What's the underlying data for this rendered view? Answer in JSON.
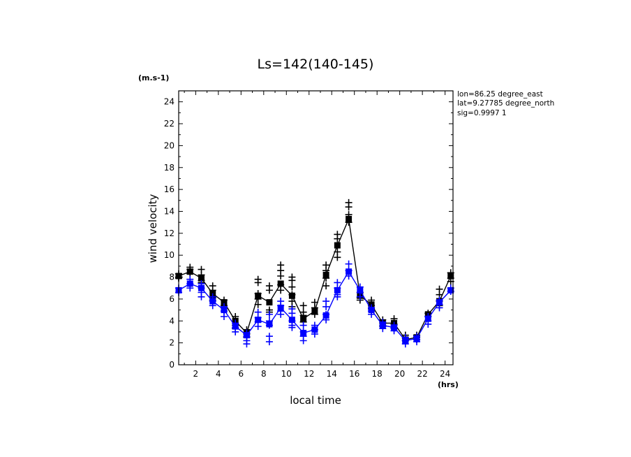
{
  "chart_data": {
    "type": "line",
    "title": "Ls=142(140-145)",
    "ylabel": "wind velocity",
    "yunit": "(m.s-1)",
    "xlabel": "local time",
    "xunit": "(hrs)",
    "xlim": [
      0.5,
      24.7
    ],
    "ylim": [
      0,
      25
    ],
    "xticks": [
      2,
      4,
      6,
      8,
      10,
      12,
      14,
      16,
      18,
      20,
      22,
      24
    ],
    "yticks": [
      0,
      2,
      4,
      6,
      8,
      10,
      12,
      14,
      16,
      18,
      20,
      22,
      24
    ],
    "grid": false,
    "x": [
      0.5,
      1.5,
      2.5,
      3.5,
      4.5,
      5.5,
      6.5,
      7.5,
      8.5,
      9.5,
      10.5,
      11.5,
      12.5,
      13.5,
      14.5,
      15.5,
      16.5,
      17.5,
      18.5,
      19.5,
      20.5,
      21.5,
      22.5,
      23.5,
      24.5
    ],
    "series": [
      {
        "color": "#000000",
        "values": [
          8.1,
          8.5,
          7.9,
          6.5,
          5.7,
          4.0,
          2.9,
          6.3,
          5.7,
          7.4,
          6.3,
          4.2,
          4.9,
          8.2,
          10.9,
          13.3,
          6.3,
          5.5,
          3.8,
          3.8,
          2.3,
          2.5,
          4.6,
          5.8,
          8.1
        ],
        "scatter": [
          [
            8.3,
            7.9,
            8.0
          ],
          [
            8.9,
            8.7,
            8.3
          ],
          [
            8.7,
            8.2,
            7.7,
            7.5
          ],
          [
            7.2,
            6.8,
            6.1,
            5.9
          ],
          [
            5.9,
            5.4,
            5.2
          ],
          [
            4.4,
            3.6,
            3.3
          ],
          [
            3.2,
            2.8,
            2.5
          ],
          [
            7.8,
            7.5,
            6.5,
            6.0,
            5.5
          ],
          [
            7.2,
            6.8,
            5.0,
            4.8
          ],
          [
            9.1,
            8.6,
            8.1,
            7.3,
            6.8
          ],
          [
            8.0,
            7.7,
            7.1,
            6.4,
            5.8,
            5.3
          ],
          [
            5.4,
            4.8,
            4.5,
            3.9
          ],
          [
            5.7,
            5.2,
            4.6
          ],
          [
            9.1,
            8.6,
            7.9,
            7.2
          ],
          [
            11.9,
            11.5,
            10.3,
            9.8
          ],
          [
            14.8,
            14.4,
            13.7,
            13.0
          ],
          [
            6.6,
            6.1,
            5.9
          ],
          [
            5.9,
            5.4,
            5.1
          ],
          [
            4.1,
            3.8,
            3.5
          ],
          [
            4.2,
            3.7,
            3.4
          ],
          [
            2.7,
            2.4,
            2.2
          ],
          [
            2.7,
            2.5,
            2.3
          ],
          [
            4.7,
            4.4
          ],
          [
            6.9,
            6.4,
            5.8,
            5.4
          ],
          [
            8.4,
            7.9,
            7.6
          ]
        ]
      },
      {
        "color": "#0000ff",
        "values": [
          6.8,
          7.4,
          7.0,
          5.8,
          5.0,
          3.5,
          2.7,
          4.1,
          3.7,
          5.2,
          4.1,
          2.9,
          3.2,
          4.5,
          6.8,
          8.5,
          6.8,
          5.0,
          3.6,
          3.4,
          2.2,
          2.4,
          4.2,
          5.7,
          6.8
        ],
        "scatter": [
          [
            7.0,
            6.6
          ],
          [
            7.8,
            7.4,
            7.0
          ],
          [
            7.4,
            7.0,
            6.6,
            6.2
          ],
          [
            6.2,
            5.8,
            5.4
          ],
          [
            5.3,
            4.9,
            4.4
          ],
          [
            3.8,
            3.4,
            3.0
          ],
          [
            2.9,
            2.6,
            2.2,
            1.9
          ],
          [
            4.8,
            4.3,
            3.9,
            3.5
          ],
          [
            4.6,
            4.0,
            3.6,
            2.6,
            2.1
          ],
          [
            5.8,
            5.4,
            4.9,
            4.6
          ],
          [
            5.1,
            4.7,
            4.0,
            3.6,
            3.4
          ],
          [
            3.6,
            3.0,
            2.6,
            2.2
          ],
          [
            3.6,
            3.2,
            2.8
          ],
          [
            5.8,
            5.3,
            4.6,
            4.1
          ],
          [
            7.5,
            7.0,
            6.4,
            6.2
          ],
          [
            9.2,
            8.6,
            8.1
          ],
          [
            7.1,
            6.6,
            6.2
          ],
          [
            5.2,
            4.9,
            4.6
          ],
          [
            3.9,
            3.6,
            3.3
          ],
          [
            3.6,
            3.3,
            3.1
          ],
          [
            2.5,
            2.2,
            1.9
          ],
          [
            2.6,
            2.3,
            2.1
          ],
          [
            4.4,
            4.0,
            3.7
          ],
          [
            5.9,
            5.5,
            5.2
          ],
          [
            7.0,
            6.7
          ]
        ]
      }
    ]
  },
  "info": {
    "lon": "lon=86.25 degree_east",
    "lat": "lat=9.27785 degree_north",
    "sig": "sig=0.9997 1"
  }
}
